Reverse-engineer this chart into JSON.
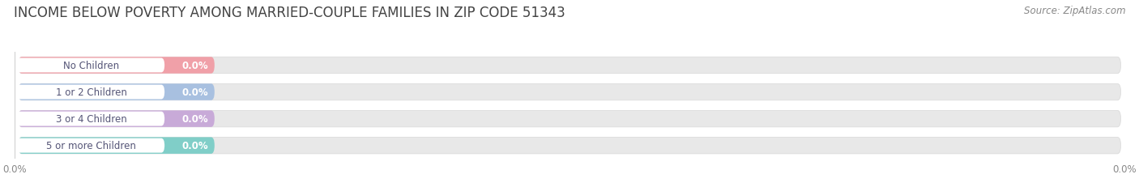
{
  "title": "INCOME BELOW POVERTY AMONG MARRIED-COUPLE FAMILIES IN ZIP CODE 51343",
  "source": "Source: ZipAtlas.com",
  "categories": [
    "No Children",
    "1 or 2 Children",
    "3 or 4 Children",
    "5 or more Children"
  ],
  "values": [
    0.0,
    0.0,
    0.0,
    0.0
  ],
  "bar_colors": [
    "#f0a0a8",
    "#a8c0e0",
    "#c8aad8",
    "#80cec8"
  ],
  "bg_bar_color": "#e8e8e8",
  "background_color": "#ffffff",
  "title_fontsize": 12,
  "label_fontsize": 8.5,
  "tick_fontsize": 8.5,
  "source_fontsize": 8.5,
  "tick_label_color": "#888888",
  "title_color": "#444444",
  "source_color": "#888888",
  "cat_text_color": "#555577",
  "val_text_color": "#ffffff"
}
